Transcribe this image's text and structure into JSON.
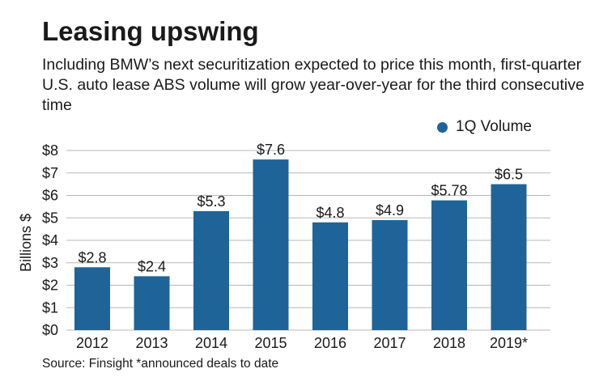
{
  "chart_data": {
    "type": "bar",
    "title": "Leasing upswing",
    "subtitle": "Including BMW’s next securitization expected to price this month, first-quarter U.S. auto lease ABS volume will grow year-over-year for the third consecutive time",
    "categories": [
      "2012",
      "2013",
      "2014",
      "2015",
      "2016",
      "2017",
      "2018",
      "2019*"
    ],
    "series": [
      {
        "name": "1Q Volume",
        "values": [
          2.8,
          2.4,
          5.3,
          7.6,
          4.8,
          4.9,
          5.78,
          6.5
        ]
      }
    ],
    "data_labels": [
      "$2.8",
      "$2.4",
      "$5.3",
      "$7.6",
      "$4.8",
      "$4.9",
      "$5.78",
      "$6.5"
    ],
    "yticks": [
      0,
      1,
      2,
      3,
      4,
      5,
      6,
      7,
      8
    ],
    "ytick_labels": [
      "$0",
      "$1",
      "$2",
      "$3",
      "$4",
      "$5",
      "$6",
      "$7",
      "$8"
    ],
    "ylim": [
      0,
      8
    ],
    "ylabel": "Billions $",
    "xlabel": "",
    "grid": true,
    "legend_position": "top-right",
    "bar_color": "#1f6499",
    "grid_color": "#b8b8b8",
    "source": "Source: Finsight *announced deals to date"
  }
}
